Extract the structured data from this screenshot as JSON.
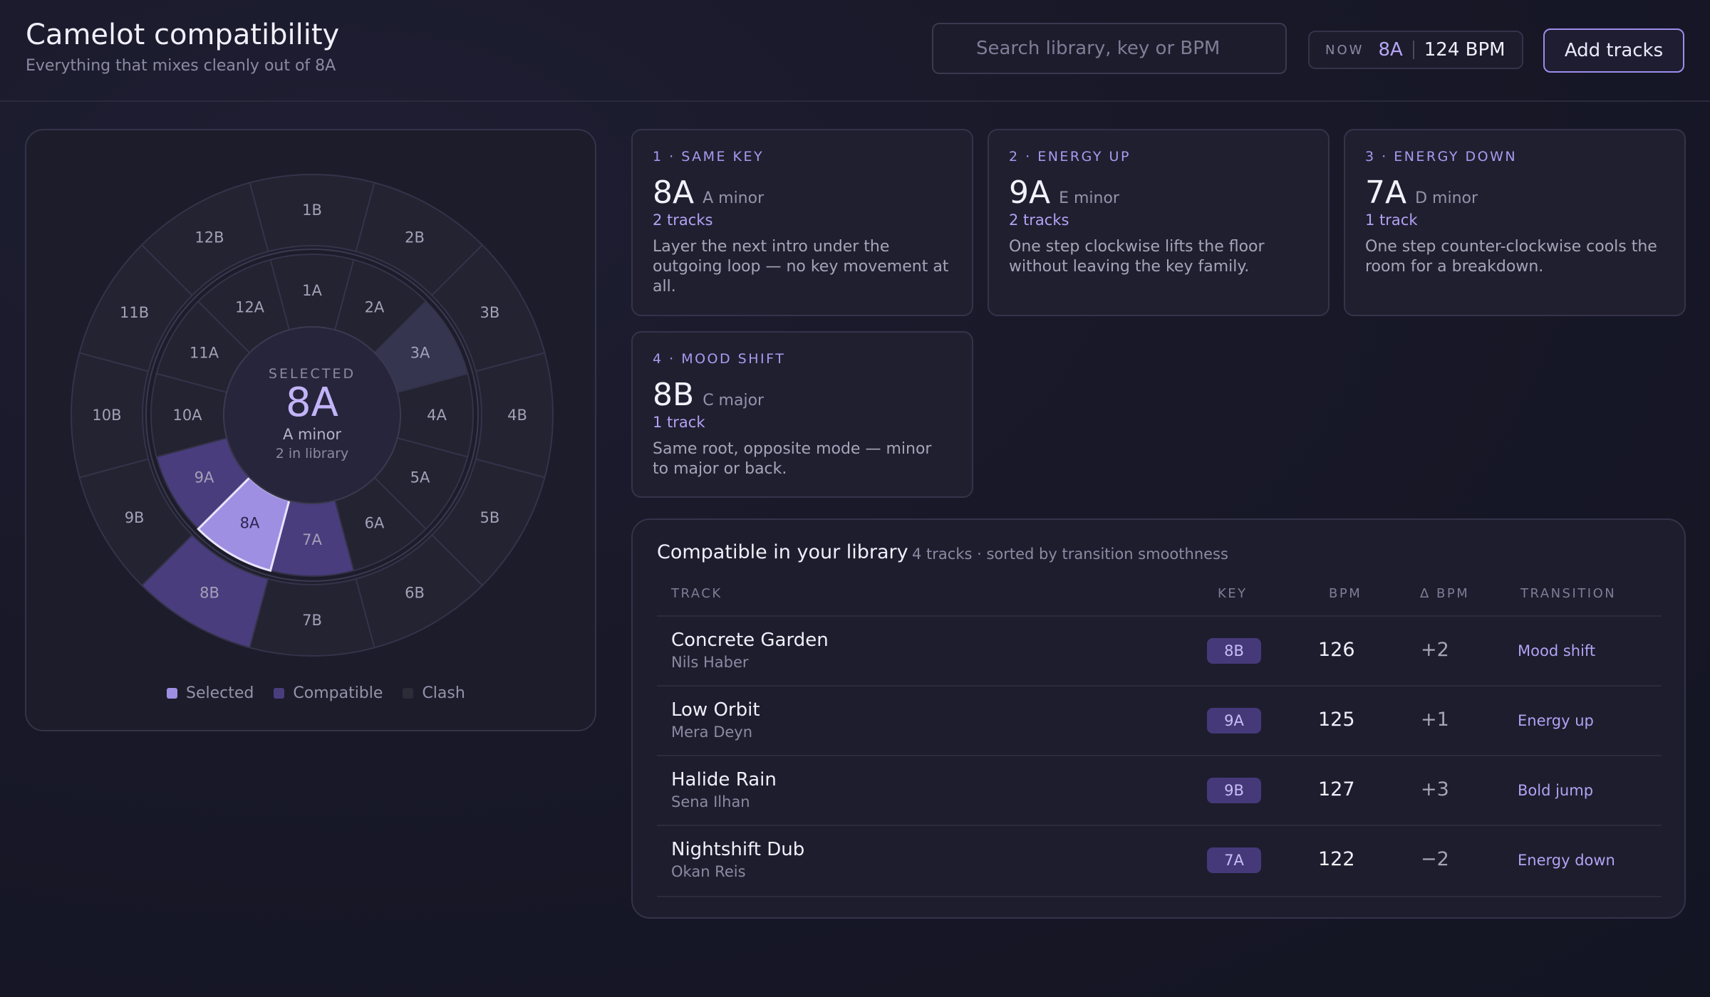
{
  "header": {
    "title": "Camelot compatibility",
    "subtitle": "Everything that mixes cleanly out of 8A",
    "search_placeholder": "Search library, key or BPM",
    "now_label": "NOW",
    "now_key": "8A",
    "now_bpm": "124 BPM",
    "add_tracks": "Add tracks"
  },
  "wheel": {
    "outer": [
      "1B",
      "2B",
      "3B",
      "4B",
      "5B",
      "6B",
      "7B",
      "8B",
      "9B",
      "10B",
      "11B",
      "12B"
    ],
    "inner": [
      "1A",
      "2A",
      "3A",
      "4A",
      "5A",
      "6A",
      "7A",
      "8A",
      "9A",
      "10A",
      "11A",
      "12A"
    ],
    "states": {
      "8A": "selected",
      "9A": "compatible",
      "7A": "compatible",
      "8B": "compatible",
      "3A": "faint"
    },
    "center": {
      "label": "SELECTED",
      "key": "8A",
      "name": "A minor",
      "count": "2 in library"
    },
    "colors": {
      "selected": "#9f8fe3",
      "compatible": "#4a3d7e",
      "base": "#232331",
      "faint": "#363550"
    },
    "legend": [
      {
        "label": "Selected",
        "color": "#9f8fe3"
      },
      {
        "label": "Compatible",
        "color": "#4a3d7e"
      },
      {
        "label": "Clash",
        "color": "#2c2c38"
      }
    ]
  },
  "cards": [
    {
      "eyebrow": "1 · SAME KEY",
      "key": "8A",
      "key_name": "A minor",
      "count": "2 tracks",
      "desc": "Layer the next intro under the outgoing loop — no key movement at all."
    },
    {
      "eyebrow": "2 · ENERGY UP",
      "key": "9A",
      "key_name": "E minor",
      "count": "2 tracks",
      "desc": "One step clockwise lifts the floor without leaving the key family."
    },
    {
      "eyebrow": "3 · ENERGY DOWN",
      "key": "7A",
      "key_name": "D minor",
      "count": "1 track",
      "desc": "One step counter-clockwise cools the room for a breakdown."
    },
    {
      "eyebrow": "4 · MOOD SHIFT",
      "key": "8B",
      "key_name": "C major",
      "count": "1 track",
      "desc": "Same root, opposite mode — minor to major or back."
    }
  ],
  "library": {
    "title": "Compatible in your library",
    "meta": "4 tracks · sorted by transition smoothness",
    "headers": {
      "track": "TRACK",
      "key": "KEY",
      "bpm": "BPM",
      "delta": "Δ BPM",
      "transition": "TRANSITION"
    },
    "rows": [
      {
        "title": "Concrete Garden",
        "artist": "Nils Haber",
        "key": "8B",
        "bpm": "126",
        "delta": "+2",
        "transition": "Mood shift"
      },
      {
        "title": "Low Orbit",
        "artist": "Mera Deyn",
        "key": "9A",
        "bpm": "125",
        "delta": "+1",
        "transition": "Energy up"
      },
      {
        "title": "Halide Rain",
        "artist": "Sena Ilhan",
        "key": "9B",
        "bpm": "127",
        "delta": "+3",
        "transition": "Bold jump"
      },
      {
        "title": "Nightshift Dub",
        "artist": "Okan Reis",
        "key": "7A",
        "bpm": "122",
        "delta": "−2",
        "transition": "Energy down"
      }
    ]
  }
}
